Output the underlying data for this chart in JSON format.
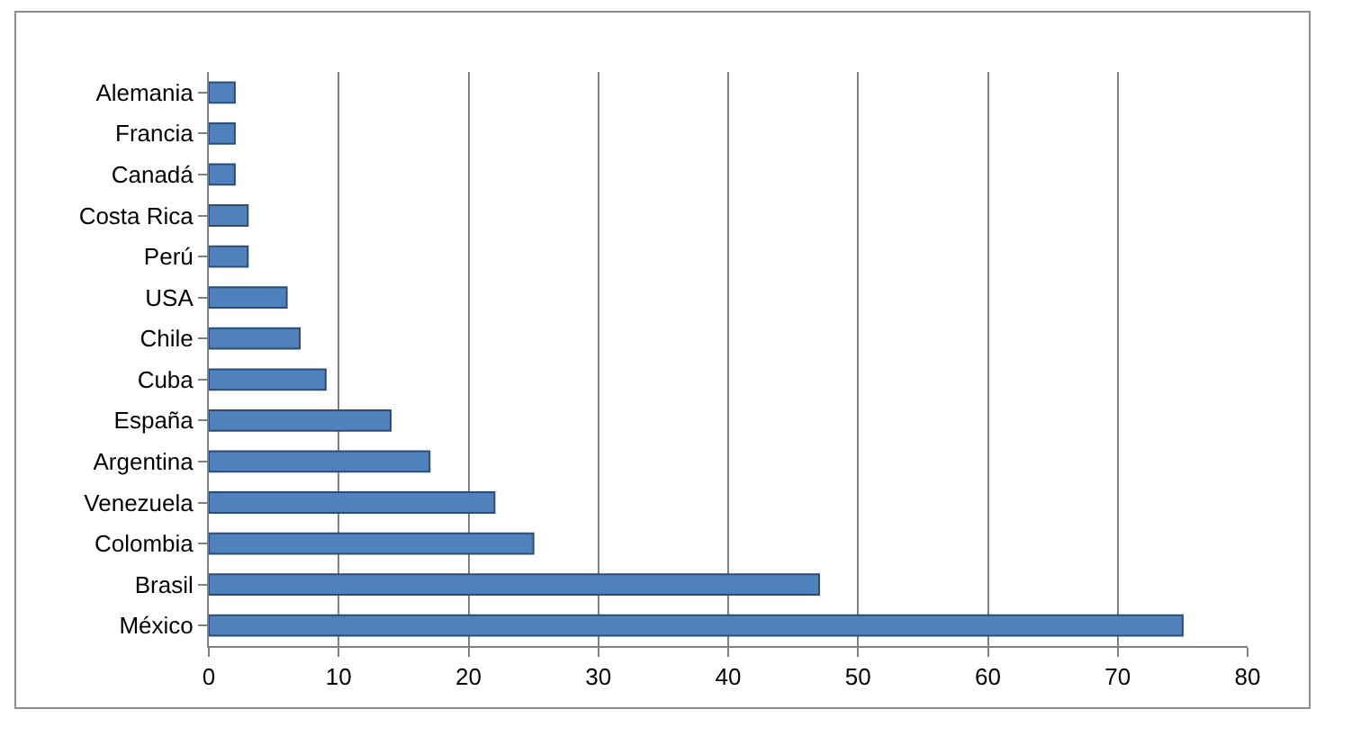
{
  "chart_data": {
    "type": "bar",
    "orientation": "horizontal",
    "categories": [
      "Alemania",
      "Francia",
      "Canadá",
      "Costa Rica",
      "Perú",
      "USA",
      "Chile",
      "Cuba",
      "España",
      "Argentina",
      "Venezuela",
      "Colombia",
      "Brasil",
      "México"
    ],
    "values": [
      2,
      2,
      2,
      3,
      3,
      6,
      7,
      9,
      14,
      17,
      22,
      25,
      47,
      75
    ],
    "color": "#4f81bd",
    "xlim": [
      0,
      80
    ],
    "xticks": [
      0,
      10,
      20,
      30,
      40,
      50,
      60,
      70,
      80
    ],
    "grid": "x"
  }
}
